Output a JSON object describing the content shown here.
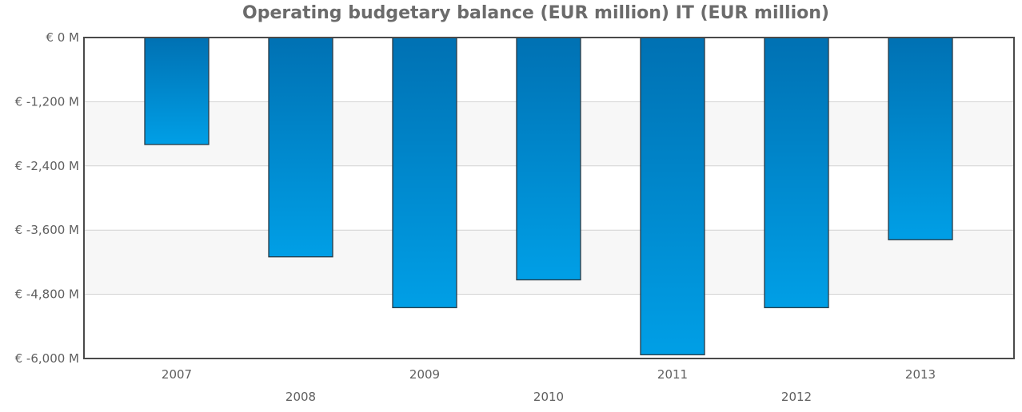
{
  "chart_data": {
    "type": "bar",
    "title": "Operating budgetary balance (EUR million) IT (EUR million)",
    "xlabel": "",
    "ylabel": "",
    "categories": [
      "2007",
      "2008",
      "2009",
      "2010",
      "2011",
      "2012",
      "2013"
    ],
    "values": [
      -2000,
      -4100,
      -5050,
      -4530,
      -5930,
      -5050,
      -3780
    ],
    "ylim": [
      -6000,
      0
    ],
    "y_ticks": [
      0,
      -1200,
      -2400,
      -3600,
      -4800,
      -6000
    ],
    "y_tick_labels": [
      "€ 0 M",
      "€ -1,200 M",
      "€ -2,400 M",
      "€ -3,600 M",
      "€ -4,800 M",
      "€ -6,000 M"
    ],
    "grid": true,
    "legend": "none",
    "colors": {
      "bar_top": "#0071b3",
      "bar_bottom": "#009fe6",
      "bar_stroke": "#2b3a44",
      "band": "#f7f7f7",
      "grid": "#d2d2d2",
      "frame": "#4a4a4a"
    }
  }
}
